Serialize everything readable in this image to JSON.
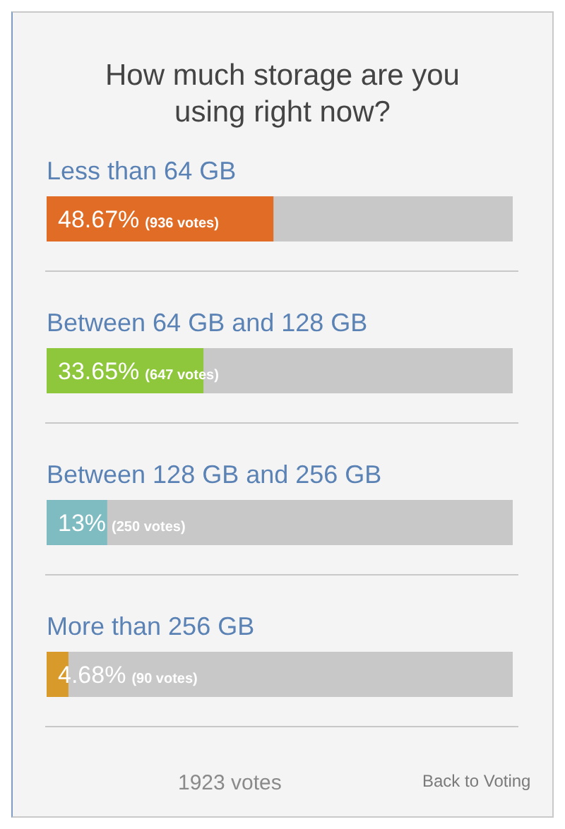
{
  "chart_data": {
    "type": "bar",
    "orientation": "horizontal",
    "title": "How much storage are you using right now?",
    "categories": [
      "Less than 64 GB",
      "Between 64 GB and 128 GB",
      "Between 128 GB and 256 GB",
      "More than 256 GB"
    ],
    "values": [
      48.67,
      33.65,
      13,
      4.68
    ],
    "colors": [
      "#e06c25",
      "#8ec73b",
      "#7fbcc1",
      "#d89a2a"
    ],
    "value_labels": [
      "48.67% (936 votes)",
      "33.65% (647 votes)",
      "13% (250 votes)",
      "4.68% (90 votes)"
    ],
    "xlim": [
      0,
      100
    ],
    "tick_labels": "y",
    "annotations": [
      "1923 votes",
      "Back to Voting"
    ]
  }
}
